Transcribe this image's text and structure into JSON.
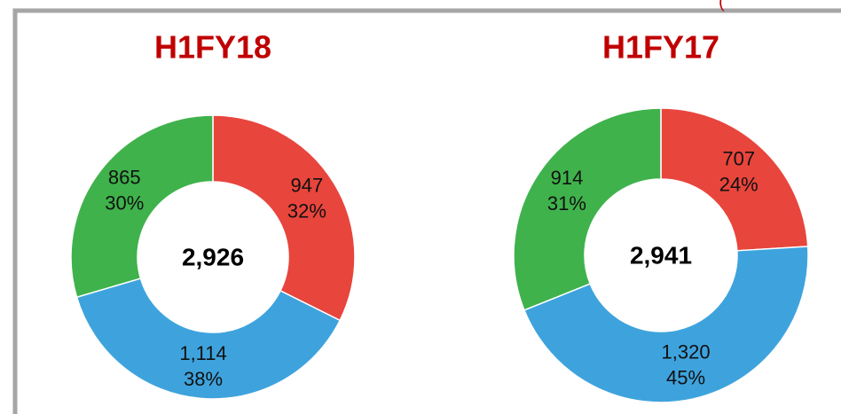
{
  "chart_data": [
    {
      "type": "donut",
      "title": "H1FY18",
      "categories": [
        null,
        null,
        null
      ],
      "values": [
        947,
        1114,
        865
      ],
      "value_labels": [
        "947",
        "1,114",
        "865"
      ],
      "percents": [
        32,
        38,
        30
      ],
      "percent_labels": [
        "32%",
        "38%",
        "30%"
      ],
      "total": 2926,
      "total_label": "2,926",
      "colors": [
        "#e8453c",
        "#3ea3dd",
        "#3fb24c"
      ]
    },
    {
      "type": "donut",
      "title": "H1FY17",
      "categories": [
        null,
        null,
        null
      ],
      "values": [
        707,
        1320,
        914
      ],
      "value_labels": [
        "707",
        "1,320",
        "914"
      ],
      "percents": [
        24,
        45,
        31
      ],
      "percent_labels": [
        "24%",
        "45%",
        "31%"
      ],
      "total": 2941,
      "total_label": "2,941",
      "colors": [
        "#e8453c",
        "#3ea3dd",
        "#3fb24c"
      ]
    }
  ],
  "annotation": "("
}
